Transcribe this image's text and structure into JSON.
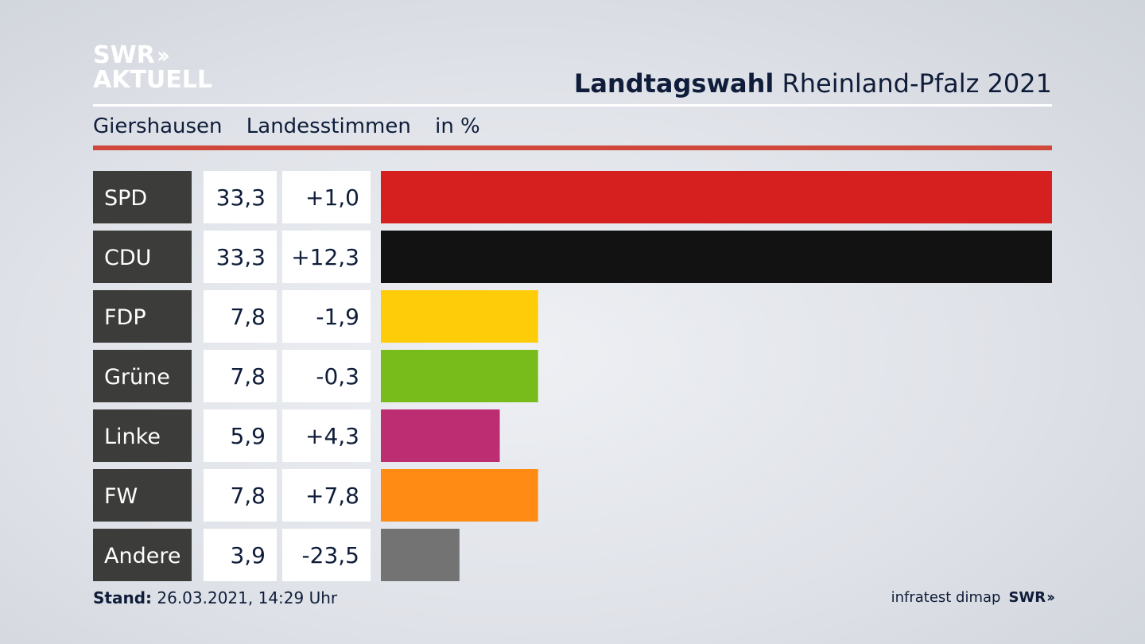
{
  "header": {
    "logo_line1": "SWR",
    "logo_line2": "AKTUELL",
    "title_bold": "Landtagswahl",
    "title_rest": " Rheinland-Pfalz 2021",
    "subtitle_location": "Giershausen",
    "subtitle_type": "Landesstimmen",
    "subtitle_unit": "in %"
  },
  "chart_data": {
    "type": "bar",
    "orientation": "horizontal",
    "categories": [
      "SPD",
      "CDU",
      "FDP",
      "Grüne",
      "Linke",
      "FW",
      "Andere"
    ],
    "values": [
      33.3,
      33.3,
      7.8,
      7.8,
      5.9,
      7.8,
      3.9
    ],
    "value_labels": [
      "33,3",
      "33,3",
      "7,8",
      "7,8",
      "5,9",
      "7,8",
      "3,9"
    ],
    "change_labels": [
      "+1,0",
      "+12,3",
      "-1,9",
      "-0,3",
      "+4,3",
      "+7,8",
      "-23,5"
    ],
    "colors": [
      "#d61f1f",
      "#121212",
      "#ffcc0a",
      "#78bc1c",
      "#bd2d72",
      "#ff8a14",
      "#737373"
    ],
    "xlim": [
      0,
      33.3
    ]
  },
  "footer": {
    "stand_label": "Stand:",
    "stand_value": " 26.03.2021, 14:29 Uhr",
    "source_label": "infratest dimap",
    "source_brand": "SWR"
  },
  "colors": {
    "label_box": "#3c3c3a",
    "value_box": "#ffffff",
    "accent_red": "#d0473b",
    "text_dark": "#0f1d3a"
  }
}
